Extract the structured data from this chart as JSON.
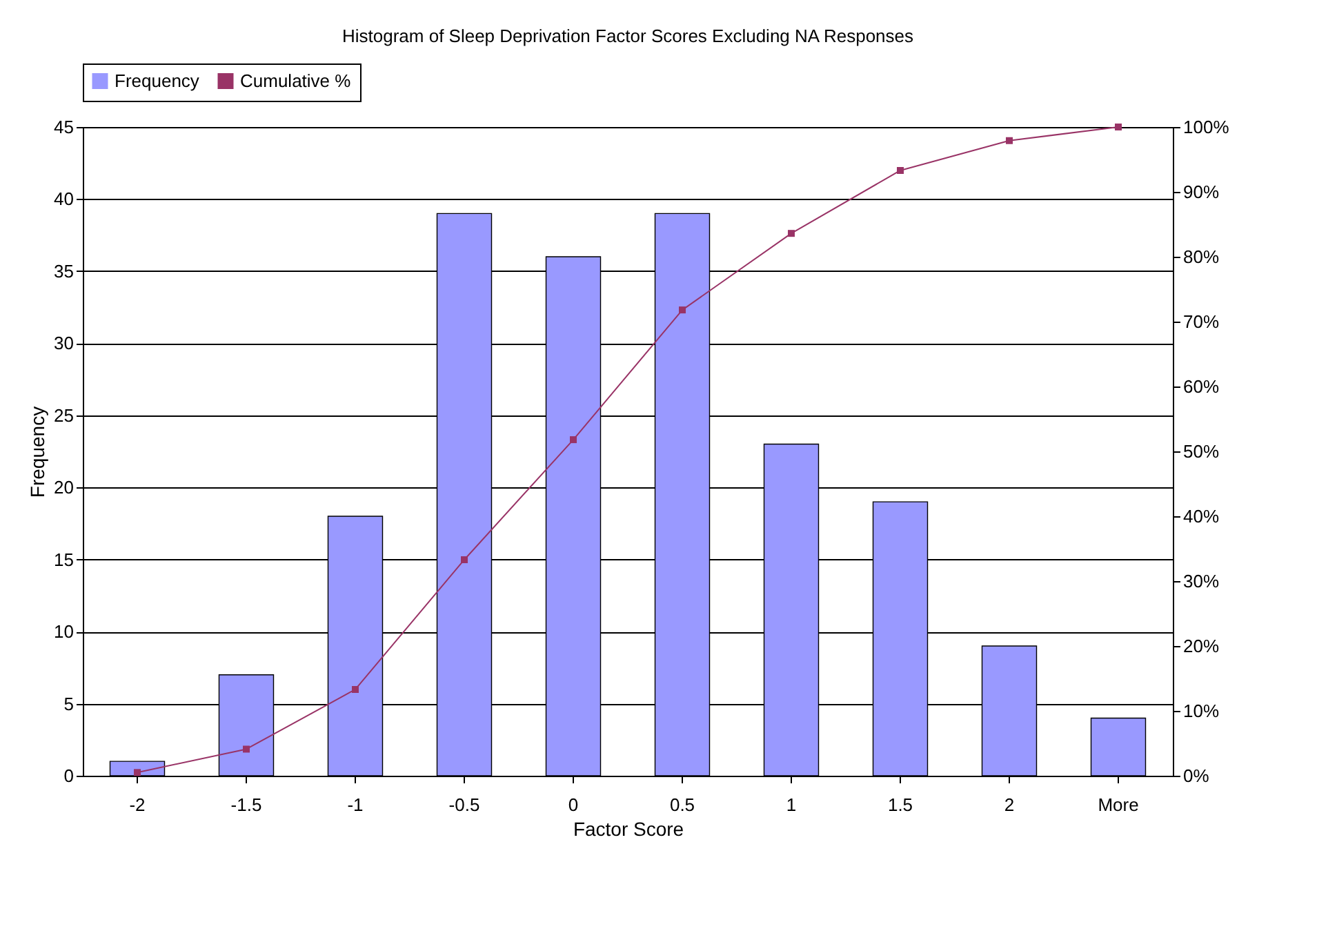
{
  "chart_data": {
    "type": "bar",
    "title": "Histogram of Sleep Deprivation Factor Scores Excluding NA Responses",
    "xlabel": "Factor Score",
    "ylabel": "Frequency",
    "categories": [
      "-2",
      "-1.5",
      "-1",
      "-0.5",
      "0",
      "0.5",
      "1",
      "1.5",
      "2",
      "More"
    ],
    "series": [
      {
        "name": "Frequency",
        "color": "#9999ff",
        "values": [
          1,
          7,
          18,
          39,
          36,
          39,
          23,
          19,
          9,
          4
        ]
      },
      {
        "name": "Cumulative %",
        "type": "line",
        "axis": "y2",
        "color": "#993366",
        "marker": "square",
        "values": [
          0.5,
          4.1,
          13.3,
          33.3,
          51.8,
          71.8,
          83.6,
          93.3,
          97.9,
          100
        ]
      }
    ],
    "ylim": [
      0,
      45
    ],
    "yticks": [
      0,
      5,
      10,
      15,
      20,
      25,
      30,
      35,
      40,
      45
    ],
    "y2lim": [
      0,
      100
    ],
    "y2ticks": [
      {
        "value": 0,
        "label": "0%"
      },
      {
        "value": 10,
        "label": "10%"
      },
      {
        "value": 20,
        "label": "20%"
      },
      {
        "value": 30,
        "label": "30%"
      },
      {
        "value": 40,
        "label": "40%"
      },
      {
        "value": 50,
        "label": "50%"
      },
      {
        "value": 60,
        "label": "60%"
      },
      {
        "value": 70,
        "label": "70%"
      },
      {
        "value": 80,
        "label": "80%"
      },
      {
        "value": 90,
        "label": "90%"
      },
      {
        "value": 100,
        "label": "100%"
      }
    ],
    "grid": "y",
    "legend": "top"
  }
}
